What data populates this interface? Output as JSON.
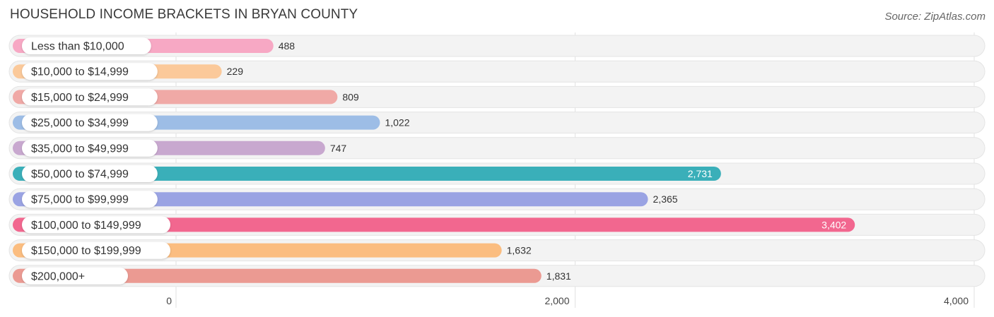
{
  "header": {
    "title": "HOUSEHOLD INCOME BRACKETS IN BRYAN COUNTY",
    "source": "Source: ZipAtlas.com"
  },
  "chart_data": {
    "type": "bar",
    "orientation": "horizontal",
    "categories": [
      "Less than $10,000",
      "$10,000 to $14,999",
      "$15,000 to $24,999",
      "$25,000 to $34,999",
      "$35,000 to $49,999",
      "$50,000 to $74,999",
      "$75,000 to $99,999",
      "$100,000 to $149,999",
      "$150,000 to $199,999",
      "$200,000+"
    ],
    "values": [
      488,
      229,
      809,
      1022,
      747,
      2731,
      2365,
      3402,
      1632,
      1831
    ],
    "value_labels": [
      "488",
      "229",
      "809",
      "1,022",
      "747",
      "2,731",
      "2,365",
      "3,402",
      "1,632",
      "1,831"
    ],
    "colors": [
      "#f7a8c4",
      "#fbc99a",
      "#f0a9a6",
      "#9dbde6",
      "#c8a8cf",
      "#3aafb9",
      "#9aa3e3",
      "#f2678f",
      "#fbbd80",
      "#eb9a92"
    ],
    "xlim": [
      0,
      4000
    ],
    "xticks": [
      0,
      2000,
      4000
    ],
    "xtick_labels": [
      "0",
      "2,000",
      "4,000"
    ],
    "grid": true
  }
}
